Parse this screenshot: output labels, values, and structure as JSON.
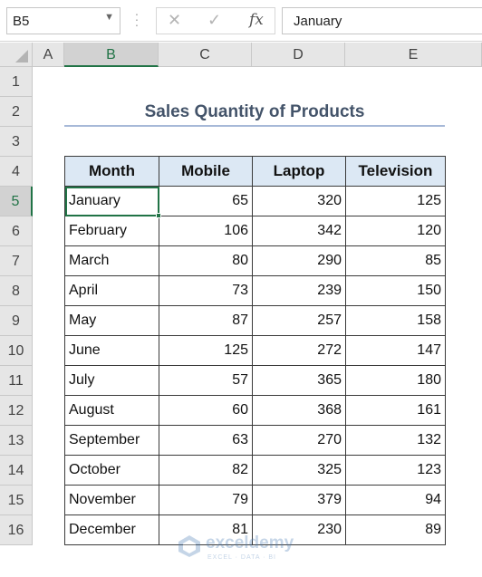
{
  "name_box": "B5",
  "formula": {
    "cancel_icon": "✕",
    "enter_icon": "✓",
    "fx_label": "fx",
    "value": "January"
  },
  "columns": [
    "A",
    "B",
    "C",
    "D",
    "E"
  ],
  "rows": [
    "1",
    "2",
    "3",
    "4",
    "5",
    "6",
    "7",
    "8",
    "9",
    "10",
    "11",
    "12",
    "13",
    "14",
    "15",
    "16"
  ],
  "selected_cell": "B5",
  "title": "Sales Quantity of Products",
  "table": {
    "headers": [
      "Month",
      "Mobile",
      "Laptop",
      "Television"
    ],
    "rows": [
      [
        "January",
        "65",
        "320",
        "125"
      ],
      [
        "February",
        "106",
        "342",
        "120"
      ],
      [
        "March",
        "80",
        "290",
        "85"
      ],
      [
        "April",
        "73",
        "239",
        "150"
      ],
      [
        "May",
        "87",
        "257",
        "158"
      ],
      [
        "June",
        "125",
        "272",
        "147"
      ],
      [
        "July",
        "57",
        "365",
        "180"
      ],
      [
        "August",
        "60",
        "368",
        "161"
      ],
      [
        "September",
        "63",
        "270",
        "132"
      ],
      [
        "October",
        "82",
        "325",
        "123"
      ],
      [
        "November",
        "79",
        "379",
        "94"
      ],
      [
        "December",
        "81",
        "230",
        "89"
      ]
    ]
  },
  "watermark": {
    "name": "exceldemy",
    "tagline": "EXCEL · DATA · BI"
  },
  "colors": {
    "accent": "#217346",
    "title": "#44546a",
    "header_fill": "#dce8f4"
  }
}
